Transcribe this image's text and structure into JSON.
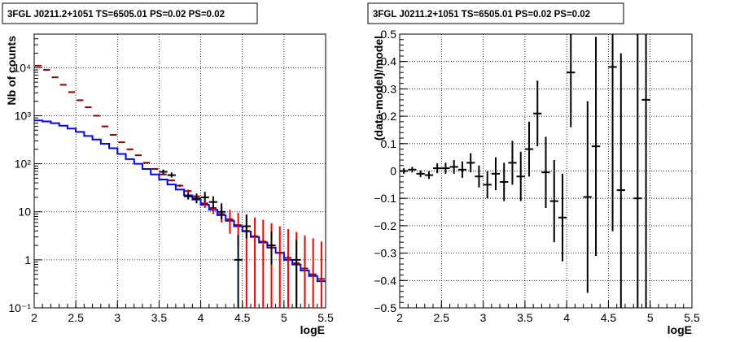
{
  "panels": [
    {
      "title": "3FGL J0211.2+1051 TS=6505.01 PS=0.02 PS=0.02",
      "xlabel": "logE",
      "ylabel": "Nb of counts"
    },
    {
      "title": "3FGL J0211.2+1051 TS=6505.01 PS=0.02 PS=0.02",
      "xlabel": "logE",
      "ylabel": "(data-model)/model"
    }
  ],
  "chart_data": [
    {
      "type": "line",
      "title": "3FGL J0211.2+1051 TS=6505.01 PS=0.02 PS=0.02",
      "xlabel": "logE",
      "ylabel": "Nb of counts",
      "xlim": [
        2,
        5.5
      ],
      "ylim": [
        0.1,
        50000
      ],
      "yscale": "log",
      "grid": true,
      "x_ticks": [
        "2",
        "2.5",
        "3",
        "3.5",
        "4",
        "4.5",
        "5",
        "5.5"
      ],
      "y_ticks": [
        "10⁻¹",
        "1",
        "10",
        "10²",
        "10³",
        "10⁴"
      ],
      "bin_edges": [
        2.0,
        2.1,
        2.2,
        2.3,
        2.4,
        2.5,
        2.6,
        2.7,
        2.8,
        2.9,
        3.0,
        3.1,
        3.2,
        3.3,
        3.4,
        3.5,
        3.6,
        3.7,
        3.8,
        3.9,
        4.0,
        4.1,
        4.2,
        4.3,
        4.4,
        4.5,
        4.6,
        4.7,
        4.8,
        4.9,
        5.0,
        5.1,
        5.2,
        5.3,
        5.4,
        5.5
      ],
      "series": [
        {
          "kind": "step",
          "color": "#0000ff",
          "values": [
            800,
            760,
            700,
            620,
            540,
            460,
            380,
            320,
            260,
            210,
            160,
            125,
            100,
            78,
            60,
            47,
            37,
            29,
            22,
            18,
            14,
            11,
            8.5,
            6.5,
            5,
            3.9,
            3,
            2.3,
            1.8,
            1.4,
            1.0,
            0.8,
            0.6,
            0.46,
            0.36
          ]
        },
        {
          "kind": "points",
          "color": "#ff0000",
          "values": [
            11000,
            9000,
            6300,
            4400,
            3100,
            2100,
            1500,
            1000,
            600,
            400,
            280,
            200,
            150,
            105,
            78,
            60,
            45,
            35,
            27,
            21,
            15,
            12,
            9,
            7,
            5.3,
            4,
            3.1,
            2.4,
            1.8,
            1.4,
            1.1,
            0.85,
            0.66,
            0.5,
            0.4
          ],
          "err_low": [
            10800,
            8900,
            6200,
            4350,
            3050,
            2070,
            1480,
            985,
            590,
            393,
            274,
            196,
            146,
            102,
            76,
            58,
            43,
            33,
            25,
            19,
            12,
            9,
            6,
            3.5,
            2,
            0.1,
            0.1,
            0.1,
            0.1,
            0.1,
            0.1,
            0.1,
            0.1,
            0.1,
            0.1
          ],
          "err_high": [
            11200,
            9100,
            6400,
            4450,
            3150,
            2130,
            1520,
            1015,
            610,
            407,
            286,
            204,
            154,
            108,
            80,
            62,
            47,
            37,
            29,
            23,
            18,
            15,
            12.5,
            11,
            9.5,
            8.5,
            7.6,
            6.8,
            5.8,
            5,
            4.4,
            3.8,
            3.2,
            2.8,
            2.4
          ]
        },
        {
          "kind": "points",
          "color": "#000000",
          "x": [
            3.55,
            3.65,
            3.85,
            3.95,
            4.05,
            4.15,
            4.25,
            4.45,
            4.55,
            4.85,
            5.15
          ],
          "values": [
            68,
            58,
            21,
            19,
            20,
            16,
            10,
            1.0,
            5,
            2.0,
            1.0
          ],
          "err_low": [
            60,
            52,
            18,
            15,
            16,
            12,
            7,
            0.1,
            2.8,
            0.8,
            0.1
          ],
          "err_high": [
            76,
            66,
            25,
            24,
            26,
            21,
            15,
            3.3,
            8.8,
            3.9,
            2.6
          ]
        }
      ]
    },
    {
      "type": "scatter",
      "title": "3FGL J0211.2+1051 TS=6505.01 PS=0.02 PS=0.02",
      "xlabel": "logE",
      "ylabel": "(data-model)/model",
      "xlim": [
        2,
        5.5
      ],
      "ylim": [
        -0.5,
        0.5
      ],
      "grid": true,
      "x_ticks": [
        "2",
        "2.5",
        "3",
        "3.5",
        "4",
        "4.5",
        "5",
        "5.5"
      ],
      "y_ticks": [
        "−0.5",
        "−0.4",
        "−0.3",
        "−0.2",
        "−0.1",
        "0",
        "0.1",
        "0.2",
        "0.3",
        "0.4",
        "0.5"
      ],
      "series": [
        {
          "color": "#000000",
          "x": [
            2.05,
            2.15,
            2.25,
            2.35,
            2.45,
            2.55,
            2.65,
            2.75,
            2.85,
            2.95,
            3.05,
            3.15,
            3.25,
            3.35,
            3.45,
            3.55,
            3.65,
            3.75,
            3.85,
            3.95,
            4.05,
            4.25,
            4.35,
            4.55,
            4.65,
            4.85,
            4.95
          ],
          "y": [
            0.0,
            0.005,
            -0.01,
            -0.015,
            0.01,
            0.01,
            0.015,
            0.005,
            0.03,
            -0.02,
            -0.05,
            -0.01,
            -0.04,
            0.03,
            -0.02,
            0.08,
            0.21,
            -0.005,
            -0.11,
            -0.17,
            0.36,
            -0.095,
            0.09,
            0.38,
            -0.07,
            -0.1,
            0.26
          ],
          "err": [
            0.01,
            0.01,
            0.012,
            0.014,
            0.018,
            0.02,
            0.025,
            0.03,
            0.035,
            0.04,
            0.05,
            0.06,
            0.07,
            0.08,
            0.09,
            0.1,
            0.12,
            0.13,
            0.15,
            0.16,
            0.2,
            0.35,
            0.4,
            0.6,
            0.5,
            0.7,
            0.8
          ]
        }
      ]
    }
  ]
}
